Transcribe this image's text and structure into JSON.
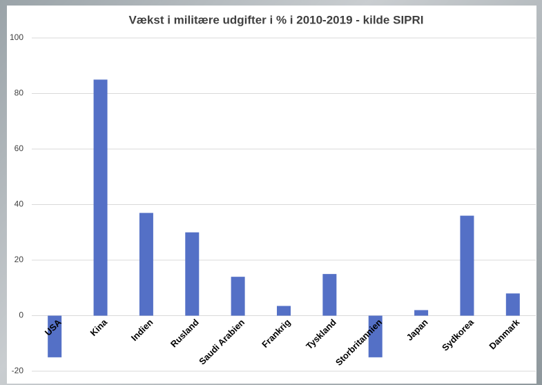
{
  "chart_data": {
    "type": "bar",
    "title": "Vækst i militære udgifter i % i 2010-2019  - kilde SIPRI",
    "categories": [
      "USA",
      "Kina",
      "Indien",
      "Rusland",
      "Saudi Arabien",
      "Frankrig",
      "Tyskland",
      "Storbritannien",
      "Japan",
      "Sydkorea",
      "Danmark"
    ],
    "values": [
      -15,
      85,
      37,
      30,
      14,
      3.5,
      15,
      -15,
      2,
      36,
      8
    ],
    "color": "#5470c6",
    "ylim": [
      -20,
      100
    ],
    "yticks": [
      -20,
      0,
      20,
      40,
      60,
      80,
      100
    ],
    "grid": true
  }
}
